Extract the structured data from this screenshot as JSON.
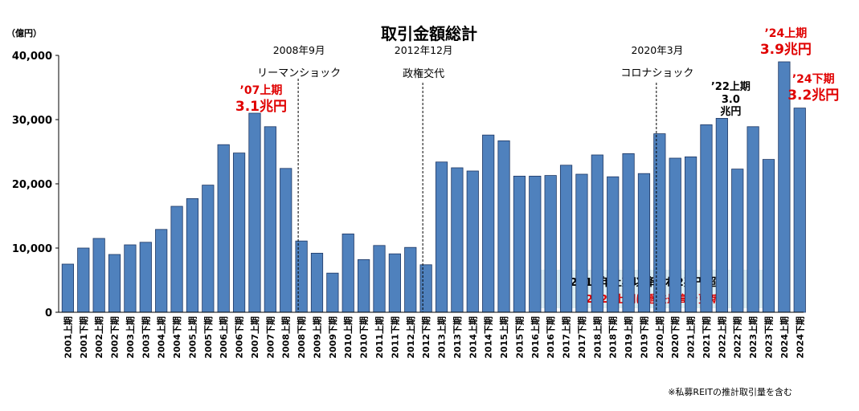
{
  "chart_data": {
    "type": "bar",
    "title": "取引金額総計",
    "y_unit": "（億円）",
    "ylim": [
      0,
      40000
    ],
    "yticks": [
      "0",
      "10,000",
      "20,000",
      "30,000",
      "40,000"
    ],
    "ytick_values": [
      0,
      10000,
      20000,
      30000,
      40000
    ],
    "grid": false,
    "bar_color": "#4f81bd",
    "bar_stroke": "#1f3864",
    "categories": [
      "2001上期",
      "2001下期",
      "2002上期",
      "2002下期",
      "2003上期",
      "2003下期",
      "2004上期",
      "2004下期",
      "2005上期",
      "2005下期",
      "2006上期",
      "2006下期",
      "2007上期",
      "2007下期",
      "2008上期",
      "2008下期",
      "2009上期",
      "2009下期",
      "2010上期",
      "2010下期",
      "2011上期",
      "2011下期",
      "2012上期",
      "2012下期",
      "2013上期",
      "2013下期",
      "2014上期",
      "2014下期",
      "2015上期",
      "2015下期",
      "2016上期",
      "2016下期",
      "2017上期",
      "2017下期",
      "2018上期",
      "2018下期",
      "2019上期",
      "2019下期",
      "2020上期",
      "2020下期",
      "2021上期",
      "2021下期",
      "2022上期",
      "2022下期",
      "2023上期",
      "2023下期",
      "2024上期",
      "2024下期"
    ],
    "values": [
      7500,
      10000,
      11500,
      9000,
      10500,
      10900,
      12900,
      16500,
      17700,
      19800,
      26100,
      24800,
      31000,
      28900,
      22400,
      11100,
      9200,
      6100,
      12200,
      8200,
      10400,
      9100,
      10100,
      7400,
      23400,
      22500,
      22000,
      27600,
      26700,
      21200,
      21200,
      21300,
      22900,
      21500,
      24500,
      21100,
      24700,
      21600,
      27800,
      24000,
      24200,
      29200,
      30200,
      22300,
      28900,
      23800,
      39000,
      31800
    ],
    "events": [
      {
        "index": 15,
        "date": "2008年9月",
        "label": "リーマンショック"
      },
      {
        "index": 23,
        "date": "2012年12月",
        "label": "政権交代"
      },
      {
        "index": 38,
        "date": "2020年3月",
        "label": "コロナショック"
      }
    ],
    "annotations": [
      {
        "index": 12,
        "line1": "’07上期",
        "line2": "3.1兆円",
        "color": "#e00000"
      },
      {
        "index": 42,
        "line1": "’22上期",
        "line2": "3.0",
        "line3": "兆円",
        "color": "#000000"
      },
      {
        "index": 46,
        "line1": "’24上期",
        "line2": "3.9兆円",
        "color": "#e00000"
      },
      {
        "index": 47,
        "line1": "’24下期",
        "line2": "3.2兆円",
        "color": "#e00000"
      }
    ],
    "note": {
      "line1": "2013年上期以降概ね2兆円超え",
      "line2": "2024上期に過去最高を更新",
      "background": "#dbeef4"
    },
    "footnote": "※私募REITの推計取引量を含む"
  }
}
